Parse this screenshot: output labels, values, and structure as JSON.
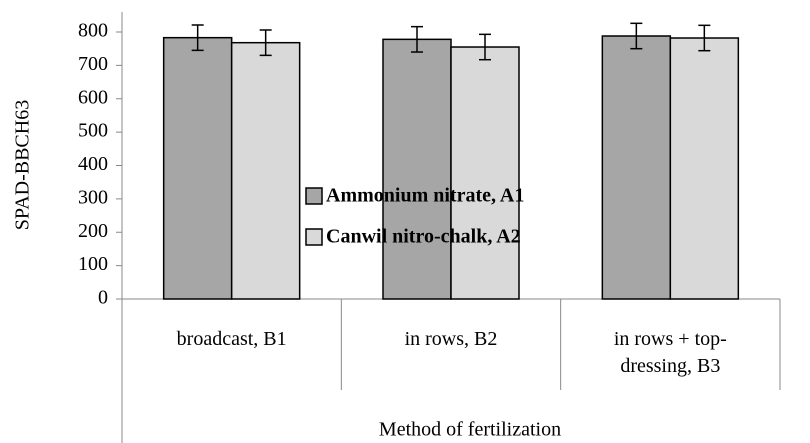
{
  "chart_data": {
    "type": "bar",
    "categories": [
      "broadcast, B1",
      "in rows, B2",
      "in rows + top-dressing, B3"
    ],
    "series": [
      {
        "name": "Ammonium nitrate, A1",
        "color": "#a6a6a6",
        "values": [
          783,
          778,
          788
        ],
        "errors": [
          38,
          38,
          38
        ]
      },
      {
        "name": "Canwil nitro-chalk, A2",
        "color": "#d9d9d9",
        "values": [
          768,
          755,
          782
        ],
        "errors": [
          38,
          38,
          38
        ]
      }
    ],
    "ylabel": "SPAD-BBCH63",
    "xlabel": "Method of fertilization",
    "ylim": [
      0,
      800
    ],
    "yticks": [
      0,
      100,
      200,
      300,
      400,
      500,
      600,
      700,
      800
    ],
    "grid": false,
    "legend": "center"
  }
}
